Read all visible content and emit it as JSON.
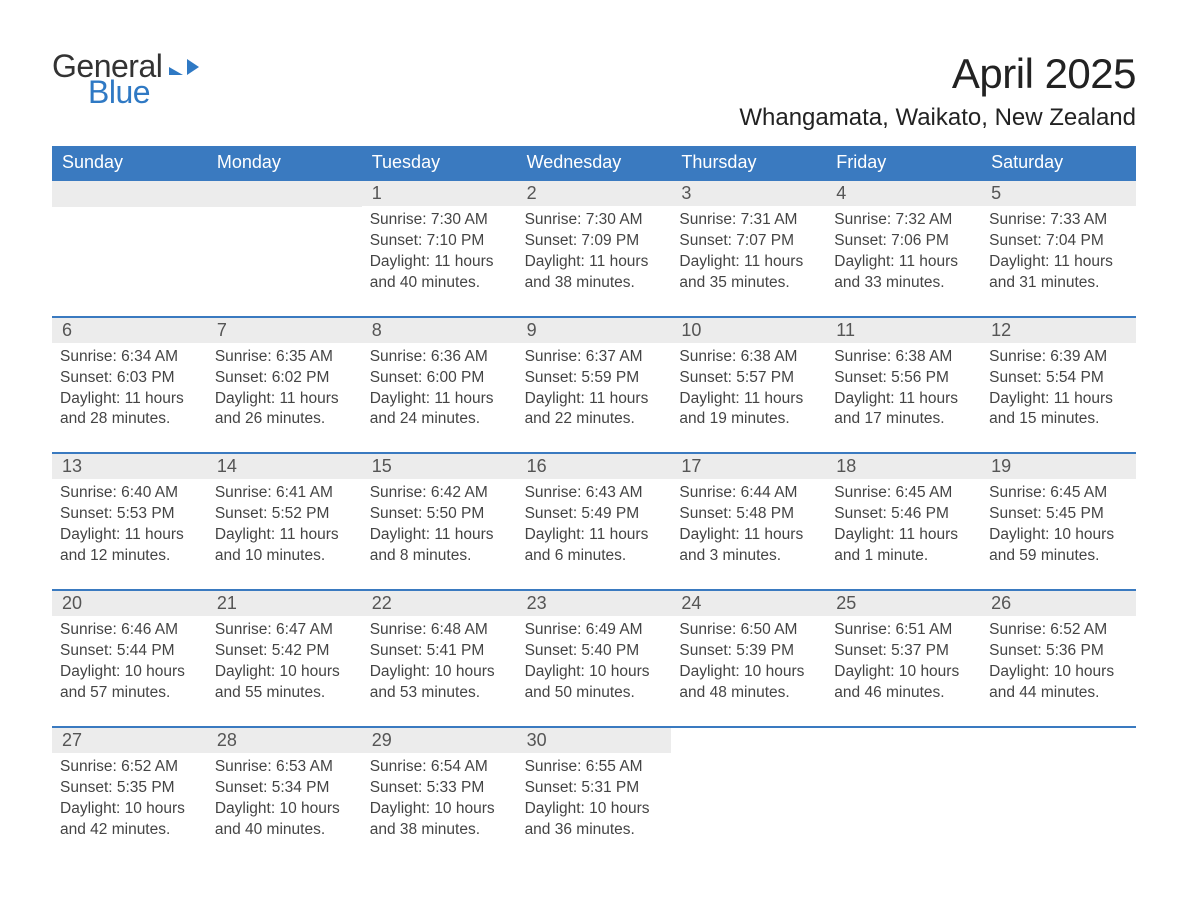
{
  "logo": {
    "word1": "General",
    "word2": "Blue"
  },
  "title": {
    "month_year": "April 2025",
    "location": "Whangamata, Waikato, New Zealand"
  },
  "colors": {
    "header_blue": "#3a7ac0",
    "row_separator": "#3a7ac0",
    "daynum_bg": "#ececec",
    "logo_blue": "#2f79c4",
    "background": "#ffffff"
  },
  "days_of_week": [
    "Sunday",
    "Monday",
    "Tuesday",
    "Wednesday",
    "Thursday",
    "Friday",
    "Saturday"
  ],
  "weeks": [
    [
      {
        "empty": true
      },
      {
        "empty": true
      },
      {
        "num": "1",
        "sunrise": "Sunrise: 7:30 AM",
        "sunset": "Sunset: 7:10 PM",
        "daylight": "Daylight: 11 hours and 40 minutes."
      },
      {
        "num": "2",
        "sunrise": "Sunrise: 7:30 AM",
        "sunset": "Sunset: 7:09 PM",
        "daylight": "Daylight: 11 hours and 38 minutes."
      },
      {
        "num": "3",
        "sunrise": "Sunrise: 7:31 AM",
        "sunset": "Sunset: 7:07 PM",
        "daylight": "Daylight: 11 hours and 35 minutes."
      },
      {
        "num": "4",
        "sunrise": "Sunrise: 7:32 AM",
        "sunset": "Sunset: 7:06 PM",
        "daylight": "Daylight: 11 hours and 33 minutes."
      },
      {
        "num": "5",
        "sunrise": "Sunrise: 7:33 AM",
        "sunset": "Sunset: 7:04 PM",
        "daylight": "Daylight: 11 hours and 31 minutes."
      }
    ],
    [
      {
        "num": "6",
        "sunrise": "Sunrise: 6:34 AM",
        "sunset": "Sunset: 6:03 PM",
        "daylight": "Daylight: 11 hours and 28 minutes."
      },
      {
        "num": "7",
        "sunrise": "Sunrise: 6:35 AM",
        "sunset": "Sunset: 6:02 PM",
        "daylight": "Daylight: 11 hours and 26 minutes."
      },
      {
        "num": "8",
        "sunrise": "Sunrise: 6:36 AM",
        "sunset": "Sunset: 6:00 PM",
        "daylight": "Daylight: 11 hours and 24 minutes."
      },
      {
        "num": "9",
        "sunrise": "Sunrise: 6:37 AM",
        "sunset": "Sunset: 5:59 PM",
        "daylight": "Daylight: 11 hours and 22 minutes."
      },
      {
        "num": "10",
        "sunrise": "Sunrise: 6:38 AM",
        "sunset": "Sunset: 5:57 PM",
        "daylight": "Daylight: 11 hours and 19 minutes."
      },
      {
        "num": "11",
        "sunrise": "Sunrise: 6:38 AM",
        "sunset": "Sunset: 5:56 PM",
        "daylight": "Daylight: 11 hours and 17 minutes."
      },
      {
        "num": "12",
        "sunrise": "Sunrise: 6:39 AM",
        "sunset": "Sunset: 5:54 PM",
        "daylight": "Daylight: 11 hours and 15 minutes."
      }
    ],
    [
      {
        "num": "13",
        "sunrise": "Sunrise: 6:40 AM",
        "sunset": "Sunset: 5:53 PM",
        "daylight": "Daylight: 11 hours and 12 minutes."
      },
      {
        "num": "14",
        "sunrise": "Sunrise: 6:41 AM",
        "sunset": "Sunset: 5:52 PM",
        "daylight": "Daylight: 11 hours and 10 minutes."
      },
      {
        "num": "15",
        "sunrise": "Sunrise: 6:42 AM",
        "sunset": "Sunset: 5:50 PM",
        "daylight": "Daylight: 11 hours and 8 minutes."
      },
      {
        "num": "16",
        "sunrise": "Sunrise: 6:43 AM",
        "sunset": "Sunset: 5:49 PM",
        "daylight": "Daylight: 11 hours and 6 minutes."
      },
      {
        "num": "17",
        "sunrise": "Sunrise: 6:44 AM",
        "sunset": "Sunset: 5:48 PM",
        "daylight": "Daylight: 11 hours and 3 minutes."
      },
      {
        "num": "18",
        "sunrise": "Sunrise: 6:45 AM",
        "sunset": "Sunset: 5:46 PM",
        "daylight": "Daylight: 11 hours and 1 minute."
      },
      {
        "num": "19",
        "sunrise": "Sunrise: 6:45 AM",
        "sunset": "Sunset: 5:45 PM",
        "daylight": "Daylight: 10 hours and 59 minutes."
      }
    ],
    [
      {
        "num": "20",
        "sunrise": "Sunrise: 6:46 AM",
        "sunset": "Sunset: 5:44 PM",
        "daylight": "Daylight: 10 hours and 57 minutes."
      },
      {
        "num": "21",
        "sunrise": "Sunrise: 6:47 AM",
        "sunset": "Sunset: 5:42 PM",
        "daylight": "Daylight: 10 hours and 55 minutes."
      },
      {
        "num": "22",
        "sunrise": "Sunrise: 6:48 AM",
        "sunset": "Sunset: 5:41 PM",
        "daylight": "Daylight: 10 hours and 53 minutes."
      },
      {
        "num": "23",
        "sunrise": "Sunrise: 6:49 AM",
        "sunset": "Sunset: 5:40 PM",
        "daylight": "Daylight: 10 hours and 50 minutes."
      },
      {
        "num": "24",
        "sunrise": "Sunrise: 6:50 AM",
        "sunset": "Sunset: 5:39 PM",
        "daylight": "Daylight: 10 hours and 48 minutes."
      },
      {
        "num": "25",
        "sunrise": "Sunrise: 6:51 AM",
        "sunset": "Sunset: 5:37 PM",
        "daylight": "Daylight: 10 hours and 46 minutes."
      },
      {
        "num": "26",
        "sunrise": "Sunrise: 6:52 AM",
        "sunset": "Sunset: 5:36 PM",
        "daylight": "Daylight: 10 hours and 44 minutes."
      }
    ],
    [
      {
        "num": "27",
        "sunrise": "Sunrise: 6:52 AM",
        "sunset": "Sunset: 5:35 PM",
        "daylight": "Daylight: 10 hours and 42 minutes."
      },
      {
        "num": "28",
        "sunrise": "Sunrise: 6:53 AM",
        "sunset": "Sunset: 5:34 PM",
        "daylight": "Daylight: 10 hours and 40 minutes."
      },
      {
        "num": "29",
        "sunrise": "Sunrise: 6:54 AM",
        "sunset": "Sunset: 5:33 PM",
        "daylight": "Daylight: 10 hours and 38 minutes."
      },
      {
        "num": "30",
        "sunrise": "Sunrise: 6:55 AM",
        "sunset": "Sunset: 5:31 PM",
        "daylight": "Daylight: 10 hours and 36 minutes."
      },
      {
        "empty": true,
        "no_bar": true
      },
      {
        "empty": true,
        "no_bar": true
      },
      {
        "empty": true,
        "no_bar": true
      }
    ]
  ]
}
